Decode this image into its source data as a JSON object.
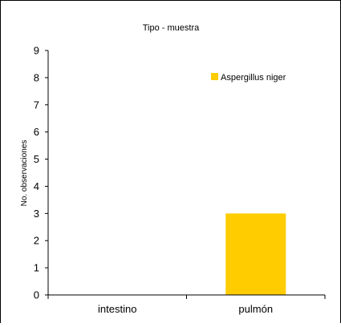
{
  "chart_data": {
    "type": "bar",
    "title": "Tipo - muestra",
    "xlabel": "",
    "ylabel": "No. observaciones",
    "categories": [
      "intestino",
      "pulmón"
    ],
    "series": [
      {
        "name": "Aspergillus niger",
        "values": [
          0,
          3
        ],
        "color": "#ffcc00"
      }
    ],
    "ylim": [
      0,
      9
    ],
    "yticks": [
      "0",
      "1",
      "2",
      "3",
      "4",
      "5",
      "6",
      "7",
      "8",
      "9"
    ],
    "grid": false,
    "legend_position": "top-right"
  }
}
